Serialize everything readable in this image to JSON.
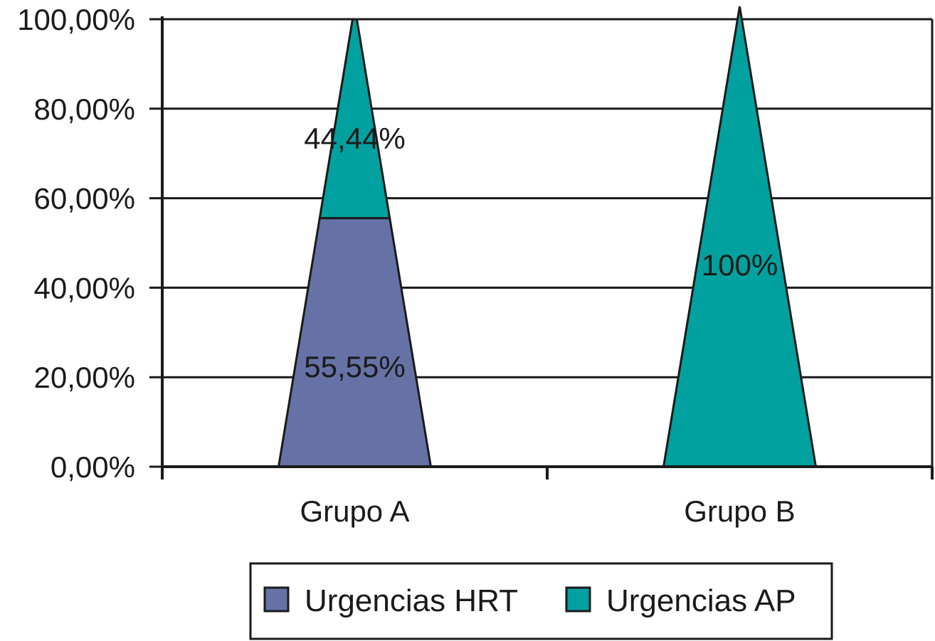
{
  "chart_data": {
    "type": "bar",
    "bar_shape": "pyramid",
    "stacked": true,
    "categories": [
      "Grupo A",
      "Grupo B"
    ],
    "series": [
      {
        "name": "Urgencias HRT",
        "color": "#6672a6",
        "values": [
          55.55,
          0
        ],
        "labels": [
          "55,55%",
          ""
        ]
      },
      {
        "name": "Urgencias AP",
        "color": "#00a19f",
        "values": [
          44.44,
          100
        ],
        "labels": [
          "44,44%",
          "100%"
        ]
      }
    ],
    "ylim": [
      0,
      100
    ],
    "yticks": [
      0,
      20,
      40,
      60,
      80,
      100
    ],
    "ytick_labels": [
      "0,00%",
      "20,00%",
      "40,00%",
      "60,00%",
      "80,00%",
      "100,00%"
    ],
    "grid": true,
    "legend_position": "bottom"
  }
}
